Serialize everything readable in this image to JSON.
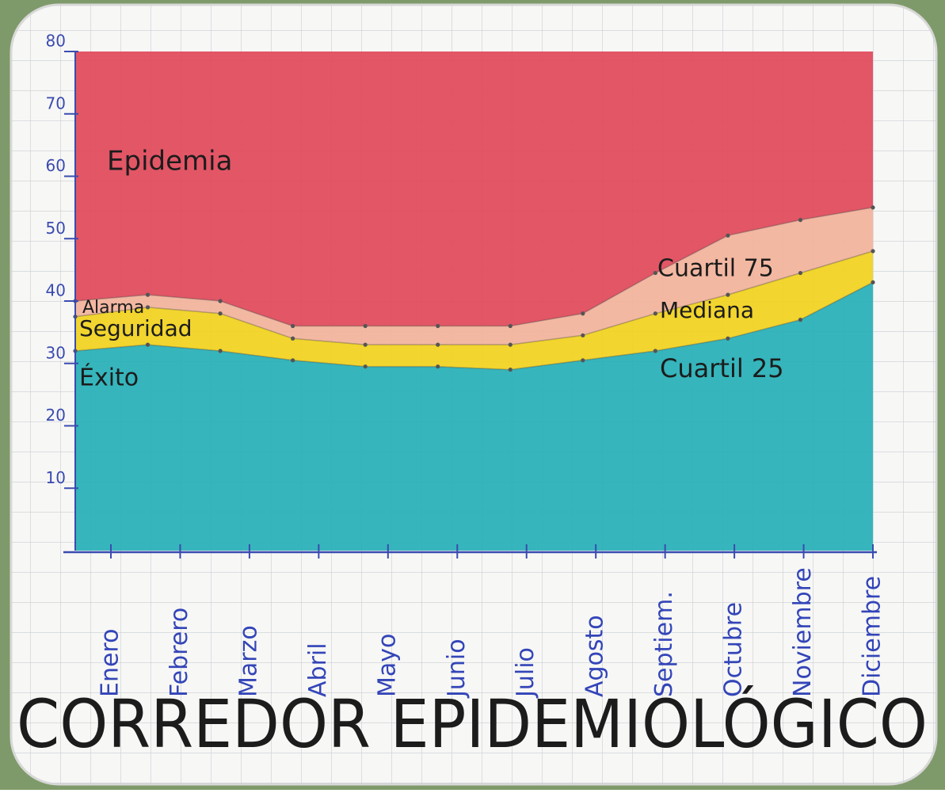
{
  "chart_data": {
    "type": "area",
    "title": "CORREDOR EPIDEMIOLÓGICO",
    "categories": [
      "Enero",
      "Febrero",
      "Marzo",
      "Abril",
      "Mayo",
      "Junio",
      "Julio",
      "Agosto",
      "Septiem.",
      "Octubre",
      "Noviembre",
      "Diciembre"
    ],
    "series": [
      {
        "name": "Cuartil 25",
        "values": [
          32,
          33,
          32,
          30.5,
          29.5,
          29.5,
          29,
          30.5,
          32,
          34,
          37,
          43
        ]
      },
      {
        "name": "Mediana",
        "values": [
          37.5,
          39,
          38,
          34,
          33,
          33,
          33,
          34.5,
          38,
          41,
          44.5,
          48
        ]
      },
      {
        "name": "Cuartil 75",
        "values": [
          40,
          41,
          40,
          36,
          36,
          36,
          36,
          38,
          44.5,
          50.5,
          53,
          55
        ]
      }
    ],
    "zones": [
      {
        "name": "Éxito",
        "color": "#27afb7"
      },
      {
        "name": "Seguridad",
        "color": "#f1d21e"
      },
      {
        "name": "Alarma",
        "color": "#f2b39b"
      },
      {
        "name": "Epidemia",
        "color": "#e0495a"
      }
    ],
    "ylim": [
      0,
      80
    ],
    "yticks": [
      10,
      20,
      30,
      40,
      50,
      60,
      70,
      80
    ]
  }
}
